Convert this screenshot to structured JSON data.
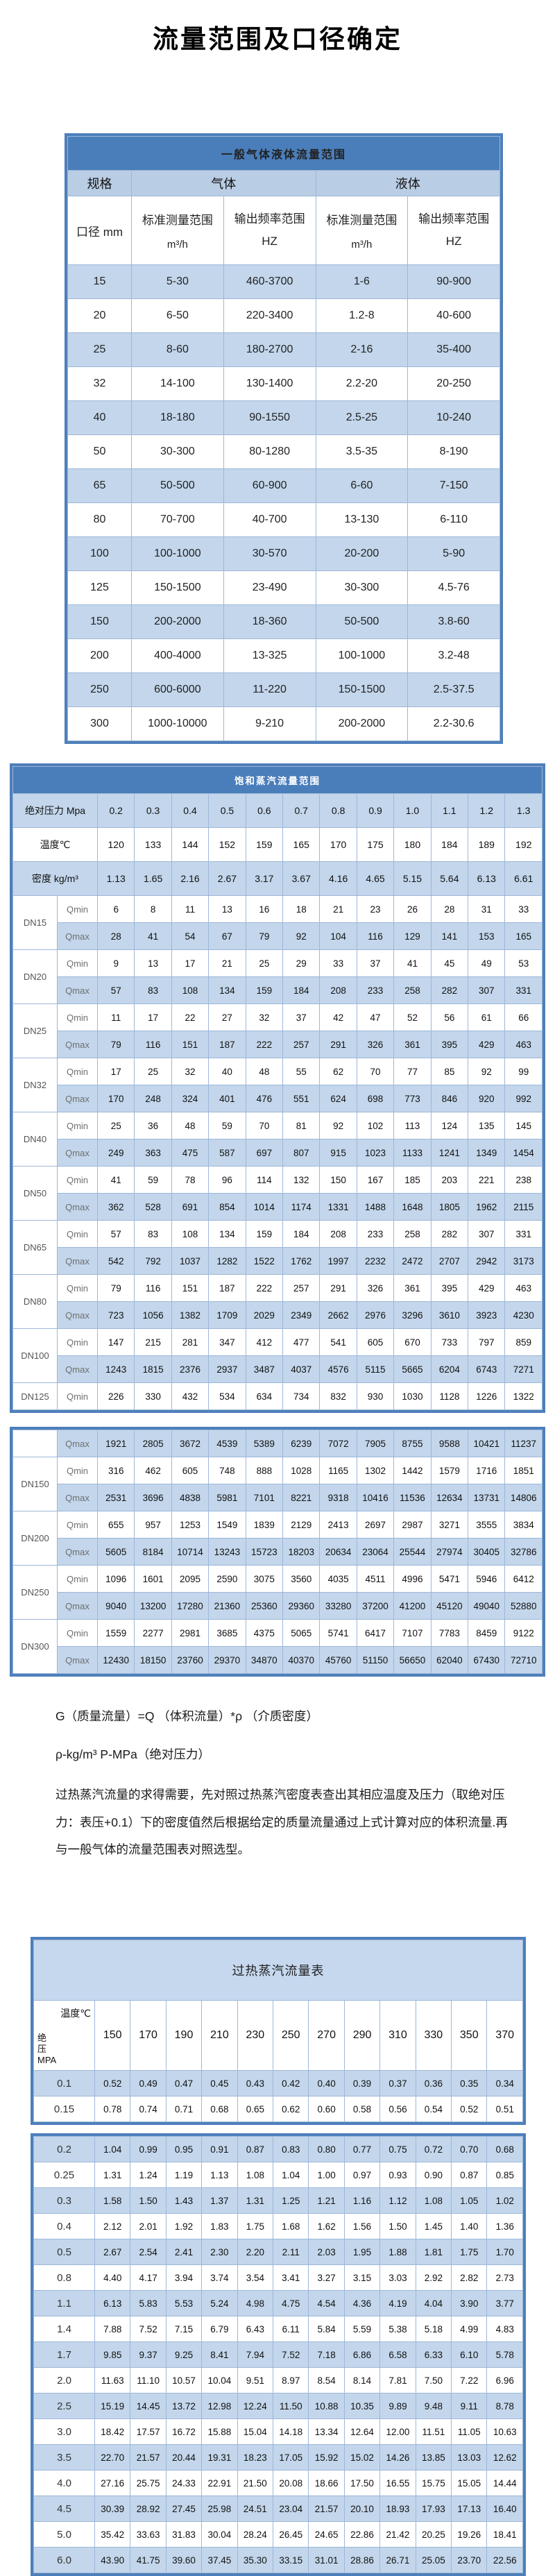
{
  "page_title": "流量范围及口径确定",
  "table1": {
    "title": "一般气体液体流量范围",
    "headers": {
      "spec": "规格",
      "gas": "气体",
      "liquid": "液体",
      "diameter": "口径 mm",
      "std_range": "标准测量范围",
      "std_unit": "m³/h",
      "freq_range": "输出频率范围 HZ"
    },
    "rows": [
      [
        "15",
        "5-30",
        "460-3700",
        "1-6",
        "90-900"
      ],
      [
        "20",
        "6-50",
        "220-3400",
        "1.2-8",
        "40-600"
      ],
      [
        "25",
        "8-60",
        "180-2700",
        "2-16",
        "35-400"
      ],
      [
        "32",
        "14-100",
        "130-1400",
        "2.2-20",
        "20-250"
      ],
      [
        "40",
        "18-180",
        "90-1550",
        "2.5-25",
        "10-240"
      ],
      [
        "50",
        "30-300",
        "80-1280",
        "3.5-35",
        "8-190"
      ],
      [
        "65",
        "50-500",
        "60-900",
        "6-60",
        "7-150"
      ],
      [
        "80",
        "70-700",
        "40-700",
        "13-130",
        "6-110"
      ],
      [
        "100",
        "100-1000",
        "30-570",
        "20-200",
        "5-90"
      ],
      [
        "125",
        "150-1500",
        "23-490",
        "30-300",
        "4.5-76"
      ],
      [
        "150",
        "200-2000",
        "18-360",
        "50-500",
        "3.8-60"
      ],
      [
        "200",
        "400-4000",
        "13-325",
        "100-1000",
        "3.2-48"
      ],
      [
        "250",
        "600-6000",
        "11-220",
        "150-1500",
        "2.5-37.5"
      ],
      [
        "300",
        "1000-10000",
        "9-210",
        "200-2000",
        "2.2-30.6"
      ]
    ]
  },
  "table2": {
    "title": "饱和蒸汽流量范围",
    "pressure_label": "绝对压力 Mpa",
    "temp_label": "温度℃",
    "density_label": "密度 kg/m³",
    "qmin_label": "Qmin",
    "qmax_label": "Qmax",
    "pressures": [
      "0.2",
      "0.3",
      "0.4",
      "0.5",
      "0.6",
      "0.7",
      "0.8",
      "0.9",
      "1.0",
      "1.1",
      "1.2",
      "1.3"
    ],
    "temps": [
      "120",
      "133",
      "144",
      "152",
      "159",
      "165",
      "170",
      "175",
      "180",
      "184",
      "189",
      "192"
    ],
    "densities": [
      "1.13",
      "1.65",
      "2.16",
      "2.67",
      "3.17",
      "3.67",
      "4.16",
      "4.65",
      "5.15",
      "5.64",
      "6.13",
      "6.61"
    ],
    "part1_groups": [
      {
        "dn": "DN15",
        "qmin": [
          "6",
          "8",
          "11",
          "13",
          "16",
          "18",
          "21",
          "23",
          "26",
          "28",
          "31",
          "33"
        ],
        "qmax": [
          "28",
          "41",
          "54",
          "67",
          "79",
          "92",
          "104",
          "116",
          "129",
          "141",
          "153",
          "165"
        ]
      },
      {
        "dn": "DN20",
        "qmin": [
          "9",
          "13",
          "17",
          "21",
          "25",
          "29",
          "33",
          "37",
          "41",
          "45",
          "49",
          "53"
        ],
        "qmax": [
          "57",
          "83",
          "108",
          "134",
          "159",
          "184",
          "208",
          "233",
          "258",
          "282",
          "307",
          "331"
        ]
      },
      {
        "dn": "DN25",
        "qmin": [
          "11",
          "17",
          "22",
          "27",
          "32",
          "37",
          "42",
          "47",
          "52",
          "56",
          "61",
          "66"
        ],
        "qmax": [
          "79",
          "116",
          "151",
          "187",
          "222",
          "257",
          "291",
          "326",
          "361",
          "395",
          "429",
          "463"
        ]
      },
      {
        "dn": "DN32",
        "qmin": [
          "17",
          "25",
          "32",
          "40",
          "48",
          "55",
          "62",
          "70",
          "77",
          "85",
          "92",
          "99"
        ],
        "qmax": [
          "170",
          "248",
          "324",
          "401",
          "476",
          "551",
          "624",
          "698",
          "773",
          "846",
          "920",
          "992"
        ]
      },
      {
        "dn": "DN40",
        "qmin": [
          "25",
          "36",
          "48",
          "59",
          "70",
          "81",
          "92",
          "102",
          "113",
          "124",
          "135",
          "145"
        ],
        "qmax": [
          "249",
          "363",
          "475",
          "587",
          "697",
          "807",
          "915",
          "1023",
          "1133",
          "1241",
          "1349",
          "1454"
        ]
      },
      {
        "dn": "DN50",
        "qmin": [
          "41",
          "59",
          "78",
          "96",
          "114",
          "132",
          "150",
          "167",
          "185",
          "203",
          "221",
          "238"
        ],
        "qmax": [
          "362",
          "528",
          "691",
          "854",
          "1014",
          "1174",
          "1331",
          "1488",
          "1648",
          "1805",
          "1962",
          "2115"
        ]
      },
      {
        "dn": "DN65",
        "qmin": [
          "57",
          "83",
          "108",
          "134",
          "159",
          "184",
          "208",
          "233",
          "258",
          "282",
          "307",
          "331"
        ],
        "qmax": [
          "542",
          "792",
          "1037",
          "1282",
          "1522",
          "1762",
          "1997",
          "2232",
          "2472",
          "2707",
          "2942",
          "3173"
        ]
      },
      {
        "dn": "DN80",
        "qmin": [
          "79",
          "116",
          "151",
          "187",
          "222",
          "257",
          "291",
          "326",
          "361",
          "395",
          "429",
          "463"
        ],
        "qmax": [
          "723",
          "1056",
          "1382",
          "1709",
          "2029",
          "2349",
          "2662",
          "2976",
          "3296",
          "3610",
          "3923",
          "4230"
        ]
      },
      {
        "dn": "DN100",
        "qmin": [
          "147",
          "215",
          "281",
          "347",
          "412",
          "477",
          "541",
          "605",
          "670",
          "733",
          "797",
          "859"
        ],
        "qmax": [
          "1243",
          "1815",
          "2376",
          "2937",
          "3487",
          "4037",
          "4576",
          "5115",
          "5665",
          "6204",
          "6743",
          "7271"
        ]
      },
      {
        "dn": "DN125",
        "qmin": [
          "226",
          "330",
          "432",
          "534",
          "634",
          "734",
          "832",
          "930",
          "1030",
          "1128",
          "1226",
          "1322"
        ]
      }
    ],
    "part2_groups": [
      {
        "dn": "",
        "qmax": [
          "1921",
          "2805",
          "3672",
          "4539",
          "5389",
          "6239",
          "7072",
          "7905",
          "8755",
          "9588",
          "10421",
          "11237"
        ]
      },
      {
        "dn": "DN150",
        "qmin": [
          "316",
          "462",
          "605",
          "748",
          "888",
          "1028",
          "1165",
          "1302",
          "1442",
          "1579",
          "1716",
          "1851"
        ],
        "qmax": [
          "2531",
          "3696",
          "4838",
          "5981",
          "7101",
          "8221",
          "9318",
          "10416",
          "11536",
          "12634",
          "13731",
          "14806"
        ]
      },
      {
        "dn": "DN200",
        "qmin": [
          "655",
          "957",
          "1253",
          "1549",
          "1839",
          "2129",
          "2413",
          "2697",
          "2987",
          "3271",
          "3555",
          "3834"
        ],
        "qmax": [
          "5605",
          "8184",
          "10714",
          "13243",
          "15723",
          "18203",
          "20634",
          "23064",
          "25544",
          "27974",
          "30405",
          "32786"
        ]
      },
      {
        "dn": "DN250",
        "qmin": [
          "1096",
          "1601",
          "2095",
          "2590",
          "3075",
          "3560",
          "4035",
          "4511",
          "4996",
          "5471",
          "5946",
          "6412"
        ],
        "qmax": [
          "9040",
          "13200",
          "17280",
          "21360",
          "25360",
          "29360",
          "33280",
          "37200",
          "41200",
          "45120",
          "49040",
          "52880"
        ]
      },
      {
        "dn": "DN300",
        "qmin": [
          "1559",
          "2277",
          "2981",
          "3685",
          "4375",
          "5065",
          "5741",
          "6417",
          "7107",
          "7783",
          "8459",
          "9122"
        ],
        "qmax": [
          "12430",
          "18150",
          "23760",
          "29370",
          "34870",
          "40370",
          "45760",
          "51150",
          "56650",
          "62040",
          "67430",
          "72710"
        ]
      }
    ]
  },
  "notes": [
    "G（质量流量）=Q （体积流量）*ρ （介质密度）",
    "ρ-kg/m³ P-MPa（绝对压力）",
    "过热蒸汽流量的求得需要，先对照过热蒸汽密度表查出其相应温度及压力（取绝对压力：表压+0.1）下的密度值然后根据给定的质量流量通过上式计算对应的体积流量.再与一般气体的流量范围表对照选型。"
  ],
  "table3": {
    "title": "过热蒸汽流量表",
    "corner_top": "温度℃",
    "corner_bottom_lines": [
      "绝",
      "压",
      "MPA"
    ],
    "temps": [
      "150",
      "170",
      "190",
      "210",
      "230",
      "250",
      "270",
      "290",
      "310",
      "330",
      "350",
      "370"
    ],
    "part1_rows": [
      {
        "p": "0.1",
        "v": [
          "0.52",
          "0.49",
          "0.47",
          "0.45",
          "0.43",
          "0.42",
          "0.40",
          "0.39",
          "0.37",
          "0.36",
          "0.35",
          "0.34"
        ]
      },
      {
        "p": "0.15",
        "v": [
          "0.78",
          "0.74",
          "0.71",
          "0.68",
          "0.65",
          "0.62",
          "0.60",
          "0.58",
          "0.56",
          "0.54",
          "0.52",
          "0.51"
        ]
      }
    ],
    "part2_rows": [
      {
        "p": "0.2",
        "v": [
          "1.04",
          "0.99",
          "0.95",
          "0.91",
          "0.87",
          "0.83",
          "0.80",
          "0.77",
          "0.75",
          "0.72",
          "0.70",
          "0.68"
        ]
      },
      {
        "p": "0.25",
        "v": [
          "1.31",
          "1.24",
          "1.19",
          "1.13",
          "1.08",
          "1.04",
          "1.00",
          "0.97",
          "0.93",
          "0.90",
          "0.87",
          "0.85"
        ]
      },
      {
        "p": "0.3",
        "v": [
          "1.58",
          "1.50",
          "1.43",
          "1.37",
          "1.31",
          "1.25",
          "1.21",
          "1.16",
          "1.12",
          "1.08",
          "1.05",
          "1.02"
        ]
      },
      {
        "p": "0.4",
        "v": [
          "2.12",
          "2.01",
          "1.92",
          "1.83",
          "1.75",
          "1.68",
          "1.62",
          "1.56",
          "1.50",
          "1.45",
          "1.40",
          "1.36"
        ]
      },
      {
        "p": "0.5",
        "v": [
          "2.67",
          "2.54",
          "2.41",
          "2.30",
          "2.20",
          "2.11",
          "2.03",
          "1.95",
          "1.88",
          "1.81",
          "1.75",
          "1.70"
        ]
      },
      {
        "p": "0.8",
        "v": [
          "4.40",
          "4.17",
          "3.94",
          "3.74",
          "3.54",
          "3.41",
          "3.27",
          "3.15",
          "3.03",
          "2.92",
          "2.82",
          "2.73"
        ]
      },
      {
        "p": "1.1",
        "v": [
          "6.13",
          "5.83",
          "5.53",
          "5.24",
          "4.98",
          "4.75",
          "4.54",
          "4.36",
          "4.19",
          "4.04",
          "3.90",
          "3.77"
        ]
      },
      {
        "p": "1.4",
        "v": [
          "7.88",
          "7.52",
          "7.15",
          "6.79",
          "6.43",
          "6.11",
          "5.84",
          "5.59",
          "5.38",
          "5.18",
          "4.99",
          "4.83"
        ]
      },
      {
        "p": "1.7",
        "v": [
          "9.85",
          "9.37",
          "9.25",
          "8.41",
          "7.94",
          "7.52",
          "7.18",
          "6.86",
          "6.58",
          "6.33",
          "6.10",
          "5.78"
        ]
      },
      {
        "p": "2.0",
        "v": [
          "11.63",
          "11.10",
          "10.57",
          "10.04",
          "9.51",
          "8.97",
          "8.54",
          "8.14",
          "7.81",
          "7.50",
          "7.22",
          "6.96"
        ]
      },
      {
        "p": "2.5",
        "v": [
          "15.19",
          "14.45",
          "13.72",
          "12.98",
          "12.24",
          "11.50",
          "10.88",
          "10.35",
          "9.89",
          "9.48",
          "9.11",
          "8.78"
        ]
      },
      {
        "p": "3.0",
        "v": [
          "18.42",
          "17.57",
          "16.72",
          "15.88",
          "15.04",
          "14.18",
          "13.34",
          "12.64",
          "12.00",
          "11.51",
          "11.05",
          "10.63"
        ]
      },
      {
        "p": "3.5",
        "v": [
          "22.70",
          "21.57",
          "20.44",
          "19.31",
          "18.23",
          "17.05",
          "15.92",
          "15.02",
          "14.26",
          "13.85",
          "13.03",
          "12.62"
        ]
      },
      {
        "p": "4.0",
        "v": [
          "27.16",
          "25.75",
          "24.33",
          "22.91",
          "21.50",
          "20.08",
          "18.66",
          "17.50",
          "16.55",
          "15.75",
          "15.05",
          "14.44"
        ]
      },
      {
        "p": "4.5",
        "v": [
          "30.39",
          "28.92",
          "27.45",
          "25.98",
          "24.51",
          "23.04",
          "21.57",
          "20.10",
          "18.93",
          "17.93",
          "17.13",
          "16.40"
        ]
      },
      {
        "p": "5.0",
        "v": [
          "35.42",
          "33.63",
          "31.83",
          "30.04",
          "28.24",
          "26.45",
          "24.65",
          "22.86",
          "21.42",
          "20.25",
          "19.26",
          "18.41"
        ]
      },
      {
        "p": "6.0",
        "v": [
          "43.90",
          "41.75",
          "39.60",
          "37.45",
          "35.30",
          "33.15",
          "31.01",
          "28.86",
          "26.71",
          "25.05",
          "23.70",
          "22.56"
        ]
      }
    ]
  }
}
